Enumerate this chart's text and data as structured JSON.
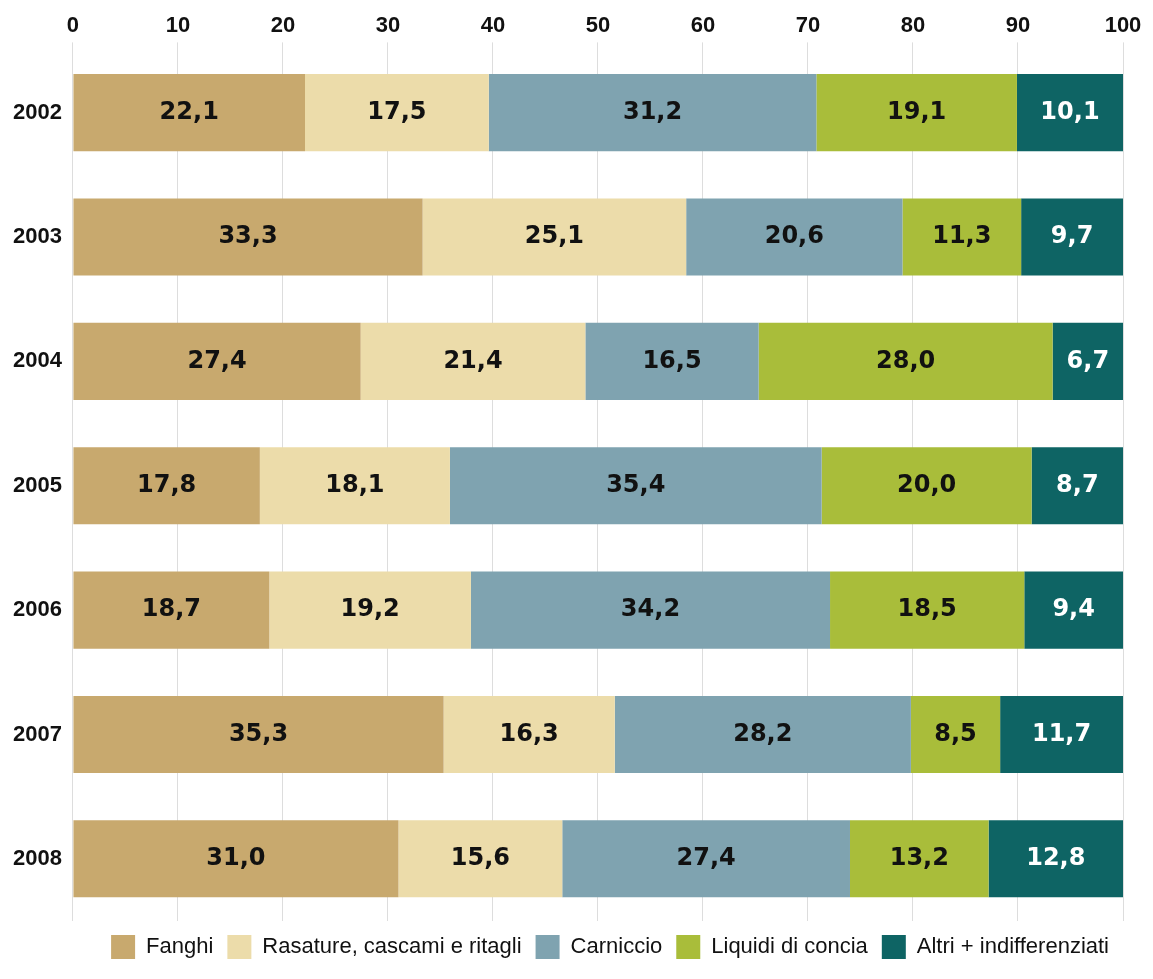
{
  "chart_data": {
    "type": "bar",
    "orientation": "horizontal",
    "stacked": true,
    "categories": [
      "2002",
      "2003",
      "2004",
      "2005",
      "2006",
      "2007",
      "2008"
    ],
    "series": [
      {
        "name": "Fanghi",
        "color": "#c8a96e",
        "values": [
          22.1,
          33.3,
          27.4,
          17.8,
          18.7,
          35.3,
          31.0
        ],
        "value_labels": [
          "22,1",
          "33,3",
          "27,4",
          "17,8",
          "18,7",
          "35,3",
          "31,0"
        ]
      },
      {
        "name": "Rasature, cascami e ritagli",
        "color": "#ecdcaa",
        "values": [
          17.5,
          25.1,
          21.4,
          18.1,
          19.2,
          16.3,
          15.6
        ],
        "value_labels": [
          "17,5",
          "25,1",
          "21,4",
          "18,1",
          "19,2",
          "16,3",
          "15,6"
        ]
      },
      {
        "name": "Carniccio",
        "color": "#7fa3b0",
        "values": [
          31.2,
          20.6,
          16.5,
          35.4,
          34.2,
          28.2,
          27.4
        ],
        "value_labels": [
          "31,2",
          "20,6",
          "16,5",
          "35,4",
          "34,2",
          "28,2",
          "27,4"
        ]
      },
      {
        "name": "Liquidi di concia",
        "color": "#a9bd3a",
        "values": [
          19.1,
          11.3,
          28.0,
          20.0,
          18.5,
          8.5,
          13.2
        ],
        "value_labels": [
          "19,1",
          "11,3",
          "28,0",
          "20,0",
          "18,5",
          "8,5",
          "13,2"
        ]
      },
      {
        "name": "Altri + indifferenziati",
        "color": "#0e6464",
        "values": [
          10.1,
          9.7,
          6.7,
          8.7,
          9.4,
          11.7,
          12.8
        ],
        "value_labels": [
          "10,1",
          "9,7",
          "6,7",
          "8,7",
          "9,4",
          "11,7",
          "12,8"
        ]
      }
    ],
    "xlim": [
      0,
      100
    ],
    "xticks": [
      0,
      10,
      20,
      30,
      40,
      50,
      60,
      70,
      80,
      90,
      100
    ],
    "grid": "x",
    "legend": "bottom right"
  }
}
